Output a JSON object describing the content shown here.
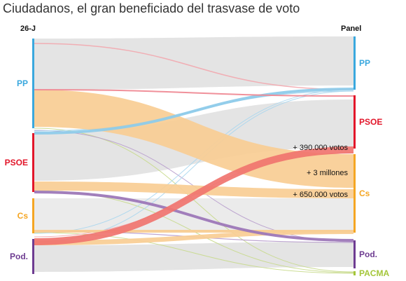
{
  "title": "Ciudadanos, el gran beneficiado del trasvase de voto",
  "chart_data": {
    "type": "sankey",
    "left_column": "26-J",
    "right_column": "Panel",
    "left_nodes": [
      {
        "id": "PP",
        "label": "PP",
        "color": "#3aa8de"
      },
      {
        "id": "PSOE",
        "label": "PSOE",
        "color": "#e2162a"
      },
      {
        "id": "Cs",
        "label": "Cs",
        "color": "#f5a623"
      },
      {
        "id": "Pod",
        "label": "Pod.",
        "color": "#6e3c91"
      }
    ],
    "right_nodes": [
      {
        "id": "PP",
        "label": "PP",
        "color": "#3aa8de"
      },
      {
        "id": "PSOE",
        "label": "PSOE",
        "color": "#e2162a"
      },
      {
        "id": "Cs",
        "label": "Cs",
        "color": "#f5a623"
      },
      {
        "id": "Pod",
        "label": "Pod.",
        "color": "#6e3c91"
      },
      {
        "id": "PACMA",
        "label": "PACMA",
        "color": "#a4c639"
      }
    ],
    "flows_highlighted": [
      {
        "from": "PP",
        "to": "Cs",
        "label": "+ 3 millones"
      },
      {
        "from": "PSOE",
        "to": "Cs",
        "label": "+ 650.000 votos"
      },
      {
        "from": "Pod",
        "to": "PSOE",
        "label": "+ 390.000 votos"
      },
      {
        "from": "PSOE",
        "to": "PP"
      },
      {
        "from": "PP",
        "to": "PSOE"
      },
      {
        "from": "PSOE",
        "to": "Pod"
      },
      {
        "from": "Cs",
        "to": "Cs"
      },
      {
        "from": "Pod",
        "to": "Cs"
      },
      {
        "from": "Pod",
        "to": "PACMA"
      }
    ],
    "annotations": [
      "+ 390.000 votos",
      "+ 3 millones",
      "+ 650.000 votos"
    ]
  }
}
